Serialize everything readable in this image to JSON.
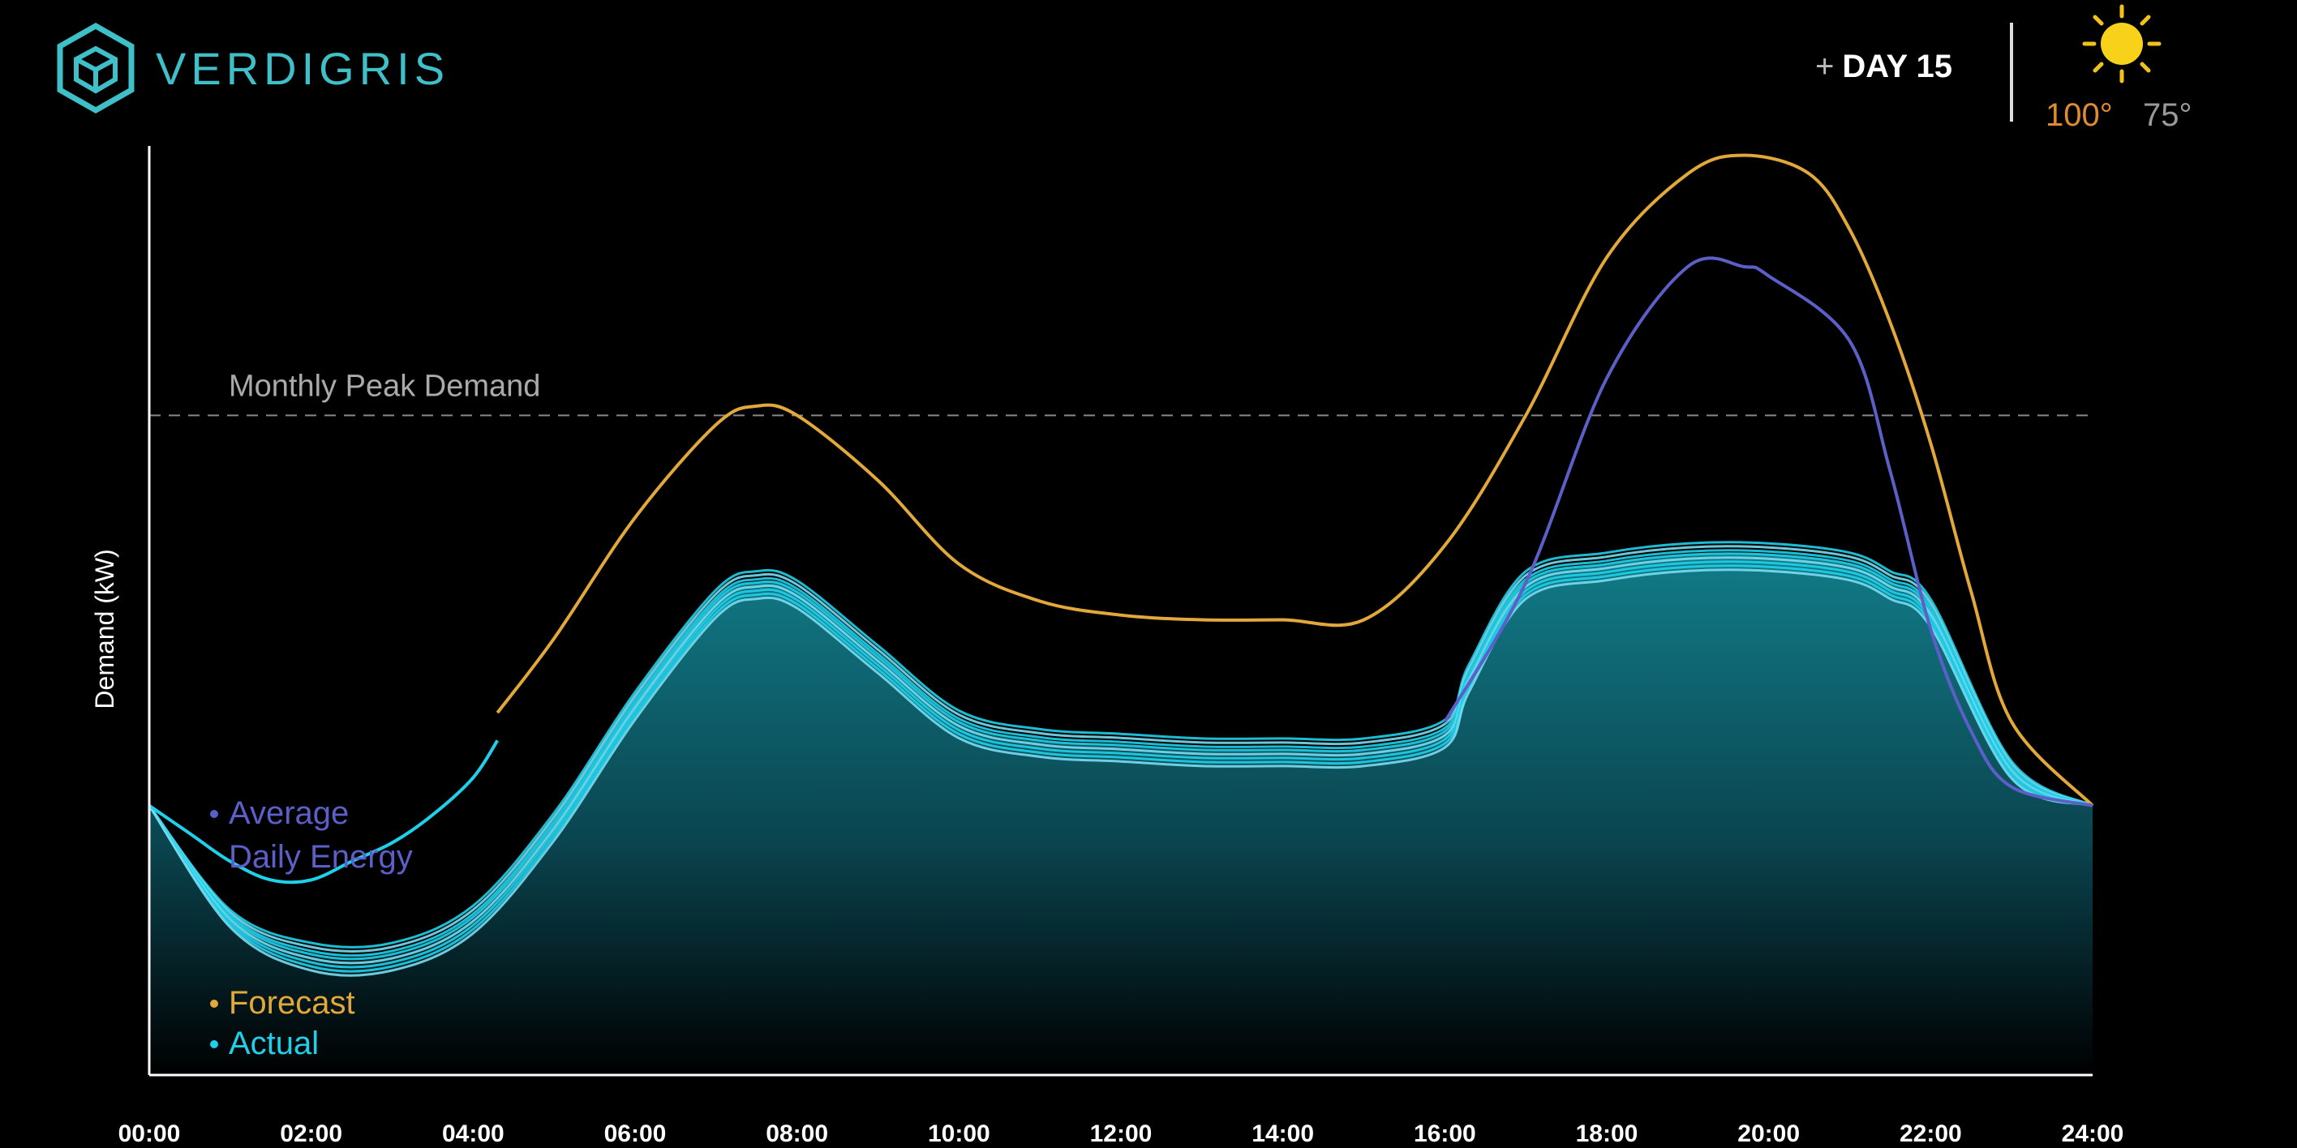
{
  "brand": {
    "name": "VERDIGRIS"
  },
  "header": {
    "day_prefix": "+",
    "day_label": "DAY 15",
    "temp_high": "100°",
    "temp_low": "75°"
  },
  "colors": {
    "forecast": "#e3a83a",
    "actual": "#1fd0ea",
    "average": "#5b5fc7",
    "peak_line": "#888888",
    "brand": "#3fc0c8"
  },
  "icons": {
    "logo": "hexagon-logo-icon",
    "weather": "sun-icon"
  },
  "chart_data": {
    "type": "line",
    "xlabel": "",
    "ylabel": "Demand  (kW)",
    "x_ticks": [
      "00:00",
      "02:00",
      "04:00",
      "06:00",
      "08:00",
      "10:00",
      "12:00",
      "14:00",
      "16:00",
      "18:00",
      "20:00",
      "22:00",
      "24:00"
    ],
    "xlim": [
      0,
      24
    ],
    "ylim": [
      0,
      100
    ],
    "grid": false,
    "annotations": [
      {
        "label": "Monthly Peak Demand",
        "y": 71,
        "style": "dashed"
      }
    ],
    "legend": {
      "placement": "left",
      "entries": [
        "Average Daily Energy",
        "Forecast",
        "Actual"
      ]
    },
    "series": [
      {
        "name": "Forecast",
        "x": [
          4.3,
          5,
          6,
          7,
          7.5,
          8,
          9,
          10,
          11,
          12,
          13,
          14,
          15,
          16,
          17,
          18,
          19,
          19.7,
          20.5,
          21,
          21.5,
          22,
          22.5,
          23,
          24
        ],
        "y": [
          39,
          47,
          60,
          70,
          72,
          71,
          64,
          55,
          51,
          49.5,
          49,
          49,
          49,
          57,
          71,
          88,
          97,
          99,
          97,
          91,
          81,
          68,
          52,
          38,
          29
        ]
      },
      {
        "name": "Actual",
        "x": [
          4.3,
          4,
          3.5,
          3,
          2.5,
          2,
          1.5,
          1,
          0.5,
          0
        ],
        "y": [
          36,
          32,
          28,
          25,
          23,
          21,
          21,
          23,
          26,
          29
        ]
      },
      {
        "name": "Average Daily Energy",
        "x": [
          16,
          17,
          18,
          19,
          19.7,
          20,
          21,
          21.5,
          22,
          22.5,
          23,
          24
        ],
        "y": [
          38,
          53,
          75,
          87,
          87,
          86,
          79,
          65,
          48,
          37,
          31,
          29
        ]
      },
      {
        "name": "Actual",
        "x": [
          0,
          1,
          2,
          3,
          4,
          5,
          6,
          7,
          7.5,
          8,
          9,
          10,
          11,
          12,
          13,
          14,
          15,
          16,
          16.3,
          17,
          18,
          19,
          20,
          21,
          21.5,
          22,
          23,
          24
        ],
        "y": [
          29,
          17,
          13,
          13,
          17,
          27,
          40,
          51,
          53,
          52,
          45,
          38,
          36,
          35.5,
          35,
          35,
          35,
          37,
          43,
          53,
          55,
          56,
          56,
          55,
          53,
          50,
          33,
          29
        ]
      }
    ]
  }
}
